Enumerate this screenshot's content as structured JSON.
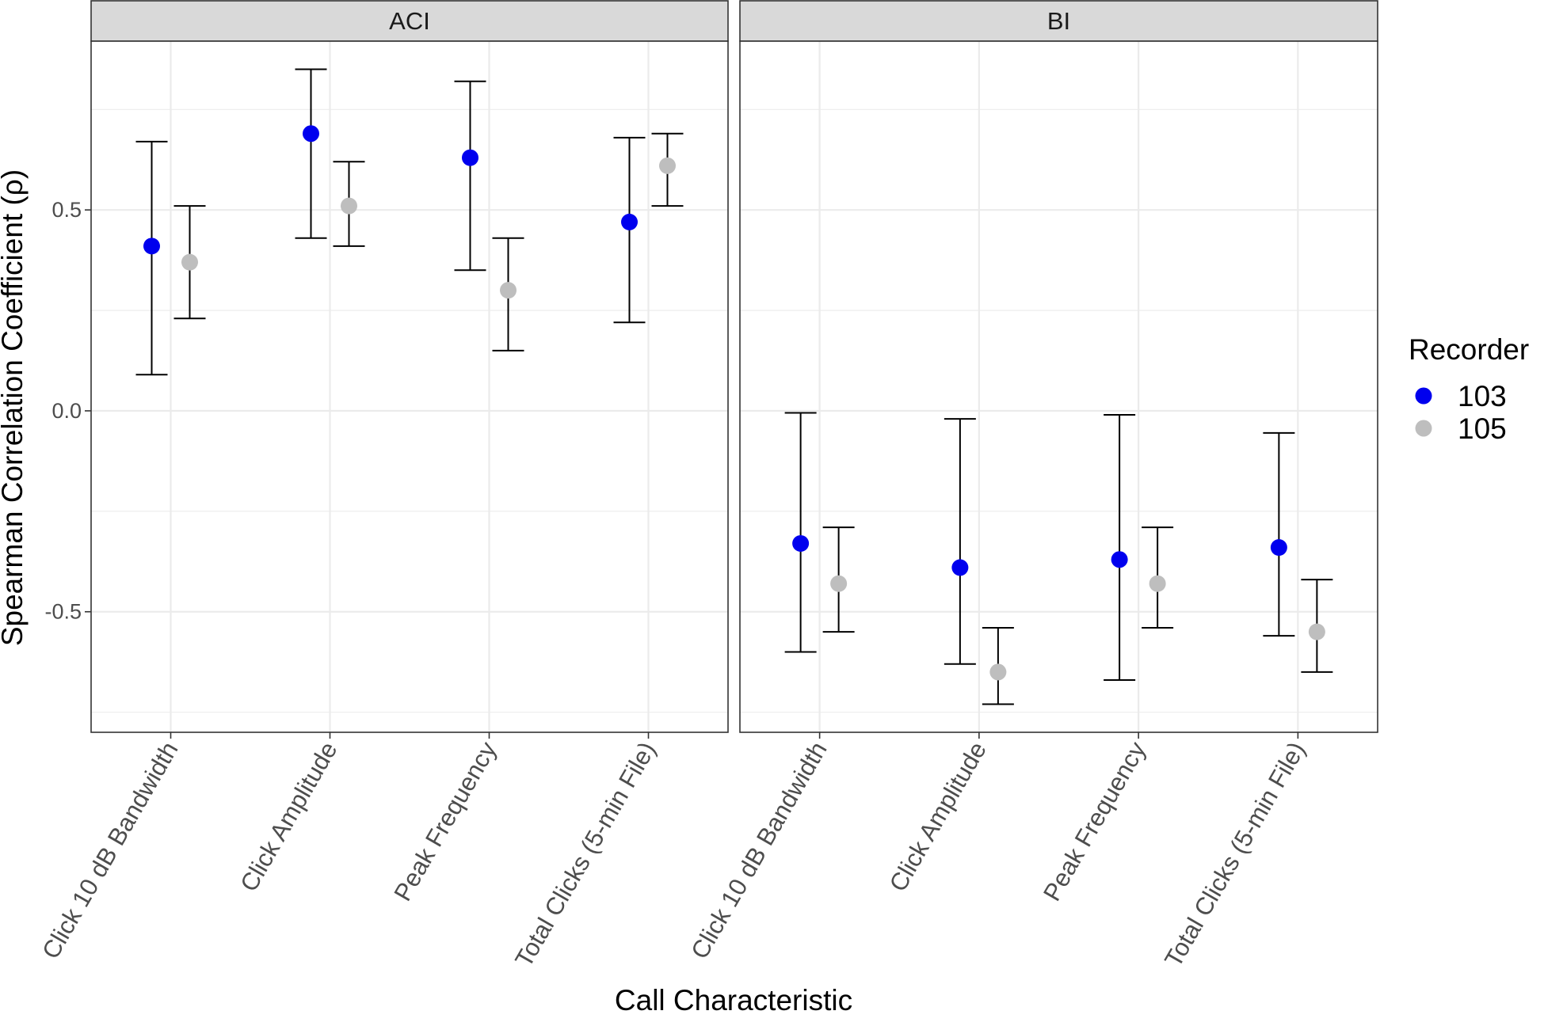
{
  "chart_data": {
    "type": "scatter",
    "subtype": "point-errorbar-faceted",
    "xlabel": "Call Characteristic",
    "ylabel": "Spearman Correlation Coefficient (ρ)",
    "ylim": [
      -0.8,
      0.92
    ],
    "yticks": [
      {
        "value": 0.5,
        "label": "0.5"
      },
      {
        "value": 0.0,
        "label": "0.0"
      },
      {
        "value": -0.5,
        "label": "-0.5"
      }
    ],
    "grid": true,
    "categories": [
      "Click 10 dB Bandwidth",
      "Click Amplitude",
      "Peak Frequency",
      "Total Clicks (5-min File)"
    ],
    "legend": {
      "title": "Recorder",
      "position": "right",
      "entries": [
        {
          "label": "103",
          "color": "#0000ee"
        },
        {
          "label": "105",
          "color": "#bebebe"
        }
      ]
    },
    "facets": [
      {
        "name": "ACI",
        "series": [
          {
            "name": "103",
            "color": "#0000ee",
            "values": [
              0.41,
              0.69,
              0.63,
              0.47
            ],
            "lower": [
              0.09,
              0.43,
              0.35,
              0.22
            ],
            "upper": [
              0.67,
              0.85,
              0.82,
              0.68
            ]
          },
          {
            "name": "105",
            "color": "#bebebe",
            "values": [
              0.37,
              0.51,
              0.3,
              0.61
            ],
            "lower": [
              0.23,
              0.41,
              0.15,
              0.51
            ],
            "upper": [
              0.51,
              0.62,
              0.43,
              0.69
            ]
          }
        ]
      },
      {
        "name": "BI",
        "series": [
          {
            "name": "103",
            "color": "#0000ee",
            "values": [
              -0.33,
              -0.39,
              -0.37,
              -0.34
            ],
            "lower": [
              -0.6,
              -0.63,
              -0.67,
              -0.56
            ],
            "upper": [
              -0.005,
              -0.02,
              -0.01,
              -0.055
            ]
          },
          {
            "name": "105",
            "color": "#bebebe",
            "values": [
              -0.43,
              -0.65,
              -0.43,
              -0.55
            ],
            "lower": [
              -0.55,
              -0.73,
              -0.54,
              -0.65
            ],
            "upper": [
              -0.29,
              -0.54,
              -0.29,
              -0.42
            ]
          }
        ]
      }
    ]
  }
}
